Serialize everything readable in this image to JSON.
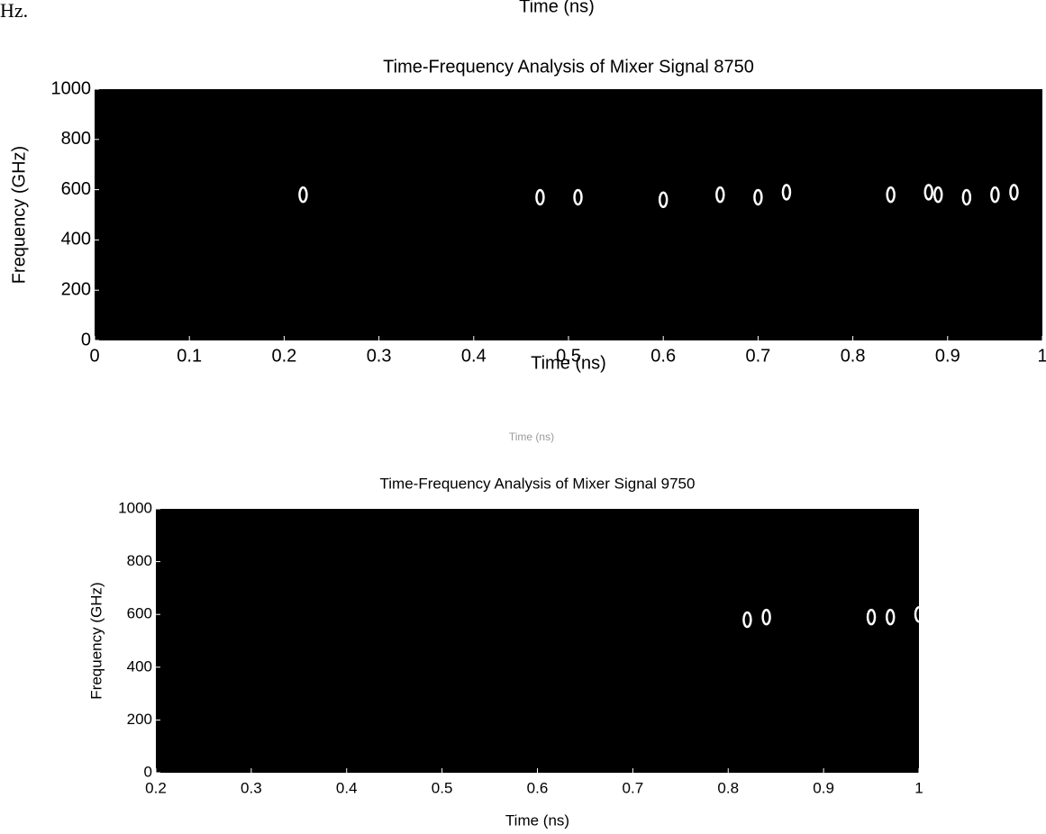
{
  "text_fragments": [
    "Hz.",
    "Time (ns)",
    "Time (ns)"
  ],
  "chart_data": [
    {
      "type": "scatter",
      "title": "Time-Frequency Analysis of Mixer Signal 8750",
      "x_label": "Time (ns)",
      "y_label": "Frequency (GHz)",
      "xlim": [
        0,
        1
      ],
      "ylim": [
        0,
        1000
      ],
      "xticks": [
        0,
        0.1,
        0.2,
        0.3,
        0.4,
        0.5,
        0.6,
        0.7,
        0.8,
        0.9,
        1
      ],
      "yticks": [
        0,
        200,
        400,
        600,
        800,
        1000
      ],
      "background": "#000000",
      "color": "#ffffff",
      "x": [
        0.22,
        0.47,
        0.51,
        0.6,
        0.66,
        0.7,
        0.73,
        0.84,
        0.88,
        0.89,
        0.92,
        0.95,
        0.97
      ],
      "y": [
        580,
        570,
        570,
        560,
        580,
        570,
        590,
        580,
        590,
        580,
        570,
        580,
        590
      ]
    },
    {
      "type": "scatter",
      "title": "Time-Frequency Analysis of Mixer Signal 9750",
      "x_label": "Time (ns)",
      "y_label": "Frequency (GHz)",
      "xlim": [
        0.2,
        1
      ],
      "ylim": [
        0,
        1000
      ],
      "xticks": [
        0.2,
        0.3,
        0.4,
        0.5,
        0.6,
        0.7,
        0.8,
        0.9,
        1
      ],
      "yticks": [
        0,
        200,
        400,
        600,
        800,
        1000
      ],
      "background": "#000000",
      "color": "#ffffff",
      "x": [
        0.82,
        0.84,
        0.95,
        0.97,
        1
      ],
      "y": [
        580,
        590,
        590,
        590,
        600
      ]
    }
  ]
}
